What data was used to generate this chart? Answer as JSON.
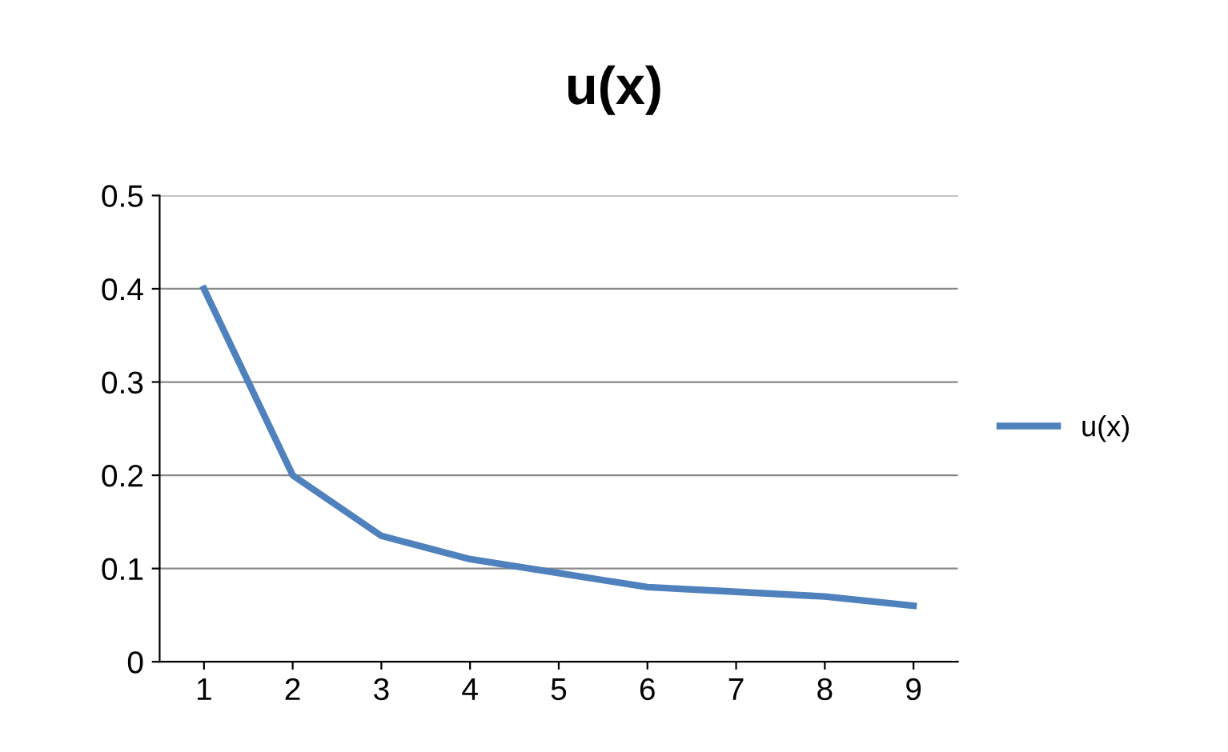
{
  "chart_data": {
    "type": "line",
    "title": "u(x)",
    "categories": [
      "1",
      "2",
      "3",
      "4",
      "5",
      "6",
      "7",
      "8",
      "9"
    ],
    "series": [
      {
        "name": "u(x)",
        "color": "#4f81bd",
        "values": [
          0.4,
          0.2,
          0.135,
          0.11,
          0.095,
          0.08,
          0.075,
          0.07,
          0.06
        ]
      }
    ],
    "ylim": [
      0,
      0.5
    ],
    "yticks": [
      0,
      0.1,
      0.2,
      0.3,
      0.4,
      0.5
    ],
    "grid": "y",
    "legend": "right",
    "marker": "none",
    "line_style": "solid"
  }
}
